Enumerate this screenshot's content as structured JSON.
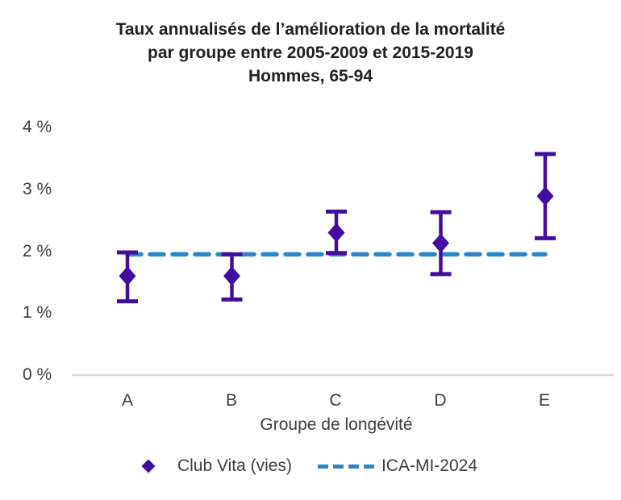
{
  "title": {
    "line1": "Taux annualisés de l’amélioration de la mortalité",
    "line2": "par groupe entre 2005-2009 et 2015-2019",
    "line3": "Hommes, 65-94"
  },
  "colors": {
    "marker_purple": "#410e9e",
    "line_blue": "#2e86c5",
    "baseline_gray": "#d9d9d9",
    "title_text": "#212121",
    "label_text": "#3d3d3d"
  },
  "chart_data": {
    "type": "scatter",
    "title": "Taux annualisés de l’amélioration de la mortalité par groupe entre 2005-2009 et 2015-2019 Hommes, 65-94",
    "categories": [
      "A",
      "B",
      "C",
      "D",
      "E"
    ],
    "series": [
      {
        "name": "Club Vita (vies)",
        "marker": "diamond",
        "values": [
          1.6,
          1.6,
          2.3,
          2.13,
          2.89
        ],
        "ci_low": [
          1.19,
          1.22,
          1.97,
          1.63,
          2.21
        ],
        "ci_high": [
          1.98,
          1.95,
          2.64,
          2.63,
          3.57
        ]
      },
      {
        "name": "ICA-MI-2024",
        "marker": "dashed-line",
        "reference_value": 1.95
      }
    ],
    "xlabel": "Groupe de longévité",
    "ylabel": "",
    "ylim": [
      0,
      4
    ],
    "ytick_labels": [
      "4 %",
      "3 %",
      "2 %",
      "1 %",
      "0 %"
    ],
    "ytick_values": [
      4,
      3,
      2,
      1,
      0
    ],
    "grid": false,
    "legend_position": "bottom"
  },
  "legend": {
    "items": [
      {
        "label": "Club Vita (vies)",
        "marker": "diamond-icon"
      },
      {
        "label": "ICA-MI-2024",
        "marker": "dashed-line-icon"
      }
    ]
  }
}
